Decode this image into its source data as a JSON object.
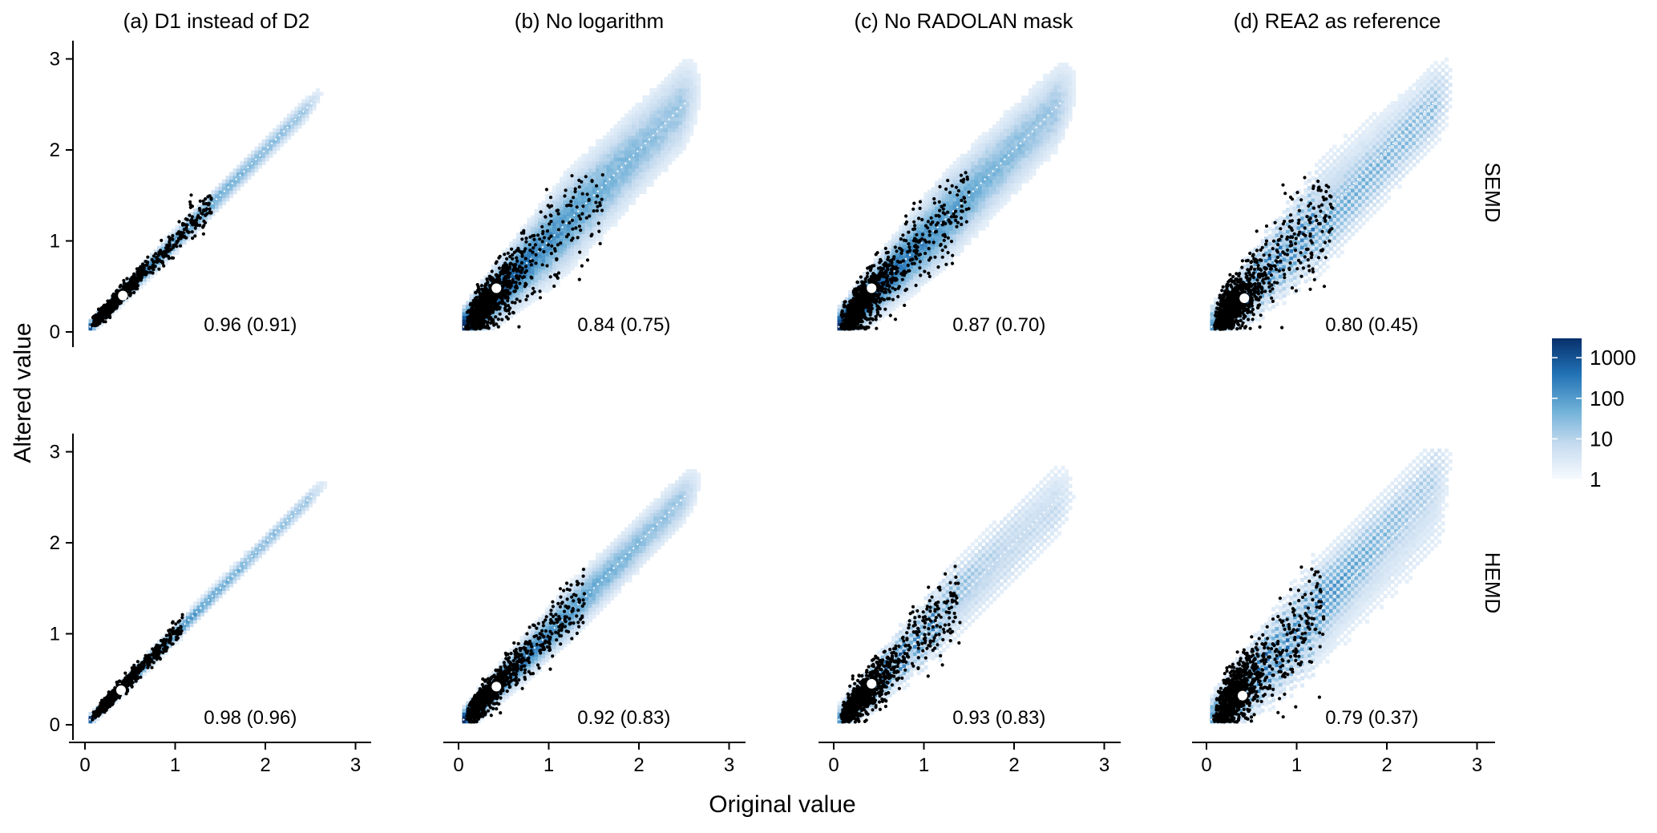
{
  "chart_data": {
    "type": "heatmap",
    "description_free": true,
    "xlabel": "Original value",
    "ylabel": "Altered value",
    "xlim": [
      0,
      3
    ],
    "ylim": [
      0,
      3
    ],
    "x_ticks": [
      0,
      1,
      2,
      3
    ],
    "y_ticks": [
      0,
      1,
      2,
      3
    ],
    "columns": [
      {
        "key": "a",
        "title": "(a) D1 instead of D2"
      },
      {
        "key": "b",
        "title": "(b) No logarithm"
      },
      {
        "key": "c",
        "title": "(c) No RADOLAN mask"
      },
      {
        "key": "d",
        "title": "(d) REA2 as reference"
      }
    ],
    "rows": [
      {
        "key": "SEMD",
        "label": "SEMD"
      },
      {
        "key": "HEMD",
        "label": "HEMD"
      }
    ],
    "panels": [
      {
        "row": "SEMD",
        "col": "a",
        "annotation": "0.96 (0.91)",
        "spread": 0.1,
        "xmax": 2.65,
        "streaks": false,
        "mean_point": [
          0.42,
          0.4
        ],
        "black_points_extent": 1.4
      },
      {
        "row": "SEMD",
        "col": "b",
        "annotation": "0.84 (0.75)",
        "spread": 0.45,
        "xmax": 2.7,
        "streaks": false,
        "mean_point": [
          0.42,
          0.48
        ],
        "black_points_extent": 1.6
      },
      {
        "row": "SEMD",
        "col": "c",
        "annotation": "0.87 (0.70)",
        "spread": 0.42,
        "xmax": 2.7,
        "streaks": false,
        "mean_point": [
          0.42,
          0.48
        ],
        "black_points_extent": 1.5
      },
      {
        "row": "SEMD",
        "col": "d",
        "annotation": "0.80 (0.45)",
        "spread": 0.5,
        "xmax": 2.75,
        "streaks": true,
        "mean_point": [
          0.42,
          0.37
        ],
        "black_points_extent": 1.4
      },
      {
        "row": "HEMD",
        "col": "a",
        "annotation": "0.98 (0.96)",
        "spread": 0.07,
        "xmax": 2.7,
        "streaks": false,
        "mean_point": [
          0.4,
          0.38
        ],
        "black_points_extent": 1.1
      },
      {
        "row": "HEMD",
        "col": "b",
        "annotation": "0.92 (0.83)",
        "spread": 0.25,
        "xmax": 2.7,
        "streaks": false,
        "mean_point": [
          0.42,
          0.42
        ],
        "black_points_extent": 1.4
      },
      {
        "row": "HEMD",
        "col": "c",
        "annotation": "0.93 (0.83)",
        "spread": 0.35,
        "xmax": 2.7,
        "streaks": true,
        "mean_point": [
          0.42,
          0.45
        ],
        "black_points_extent": 1.4
      },
      {
        "row": "HEMD",
        "col": "d",
        "annotation": "0.79 (0.37)",
        "spread": 0.55,
        "xmax": 2.75,
        "streaks": true,
        "mean_point": [
          0.4,
          0.32
        ],
        "black_points_extent": 1.3
      }
    ],
    "legend": {
      "title": "",
      "scale": "log",
      "breaks": [
        "1000",
        "100",
        "10",
        "1"
      ],
      "break_values": [
        1000,
        100,
        10,
        1
      ],
      "range": [
        1,
        3000
      ],
      "colors": [
        "#f7fbff",
        "#c6dbef",
        "#6baed6",
        "#2171b5",
        "#08306b"
      ],
      "placement": "right"
    },
    "overlay": {
      "diagonal": "white dotted 1:1 line",
      "mean_marker_color": "#ffffff",
      "point_color": "#000000"
    }
  }
}
